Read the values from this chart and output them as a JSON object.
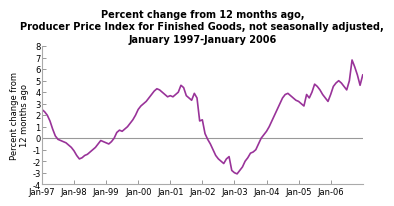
{
  "title": "Percent change from 12 months ago,\nProducer Price Index for Finished Goods, not seasonally adjusted,\nJanuary 1997-January 2006",
  "ylabel": "Percent change from\n12 months ago",
  "line_color": "#993399",
  "line_width": 1.2,
  "background_color": "#ffffff",
  "ylim": [
    -4,
    8
  ],
  "yticks": [
    -4,
    -3,
    -2,
    -1,
    0,
    1,
    2,
    3,
    4,
    5,
    6,
    7,
    8
  ],
  "xtick_labels": [
    "Jan-97",
    "Jan-98",
    "Jan-99",
    "Jan-00",
    "Jan-01",
    "Jan-02",
    "Jan-03",
    "Jan-04",
    "Jan-05",
    "Jan-06"
  ],
  "values": [
    2.5,
    2.3,
    2.0,
    1.5,
    0.8,
    0.2,
    -0.1,
    -0.2,
    -0.3,
    -0.4,
    -0.6,
    -0.8,
    -1.1,
    -1.5,
    -1.8,
    -1.7,
    -1.5,
    -1.4,
    -1.2,
    -1.0,
    -0.8,
    -0.5,
    -0.2,
    -0.3,
    -0.4,
    -0.5,
    -0.3,
    0.0,
    0.5,
    0.7,
    0.6,
    0.8,
    1.0,
    1.3,
    1.6,
    2.0,
    2.5,
    2.8,
    3.0,
    3.2,
    3.5,
    3.8,
    4.1,
    4.3,
    4.2,
    4.0,
    3.8,
    3.6,
    3.7,
    3.6,
    3.8,
    4.0,
    4.6,
    4.4,
    3.7,
    3.5,
    3.3,
    3.9,
    3.5,
    1.5,
    1.6,
    0.4,
    -0.1,
    -0.5,
    -1.0,
    -1.5,
    -1.8,
    -2.0,
    -2.2,
    -1.8,
    -1.6,
    -2.8,
    -3.0,
    -3.1,
    -2.8,
    -2.5,
    -2.0,
    -1.7,
    -1.3,
    -1.2,
    -1.0,
    -0.5,
    0.0,
    0.3,
    0.6,
    1.0,
    1.5,
    2.0,
    2.5,
    3.0,
    3.5,
    3.8,
    3.9,
    3.7,
    3.5,
    3.3,
    3.2,
    3.0,
    2.8,
    3.8,
    3.5,
    4.0,
    4.7,
    4.5,
    4.2,
    3.8,
    3.5,
    3.2,
    3.8,
    4.5,
    4.8,
    5.0,
    4.8,
    4.5,
    4.2,
    5.0,
    6.8,
    6.2,
    5.5,
    4.6,
    5.5
  ]
}
